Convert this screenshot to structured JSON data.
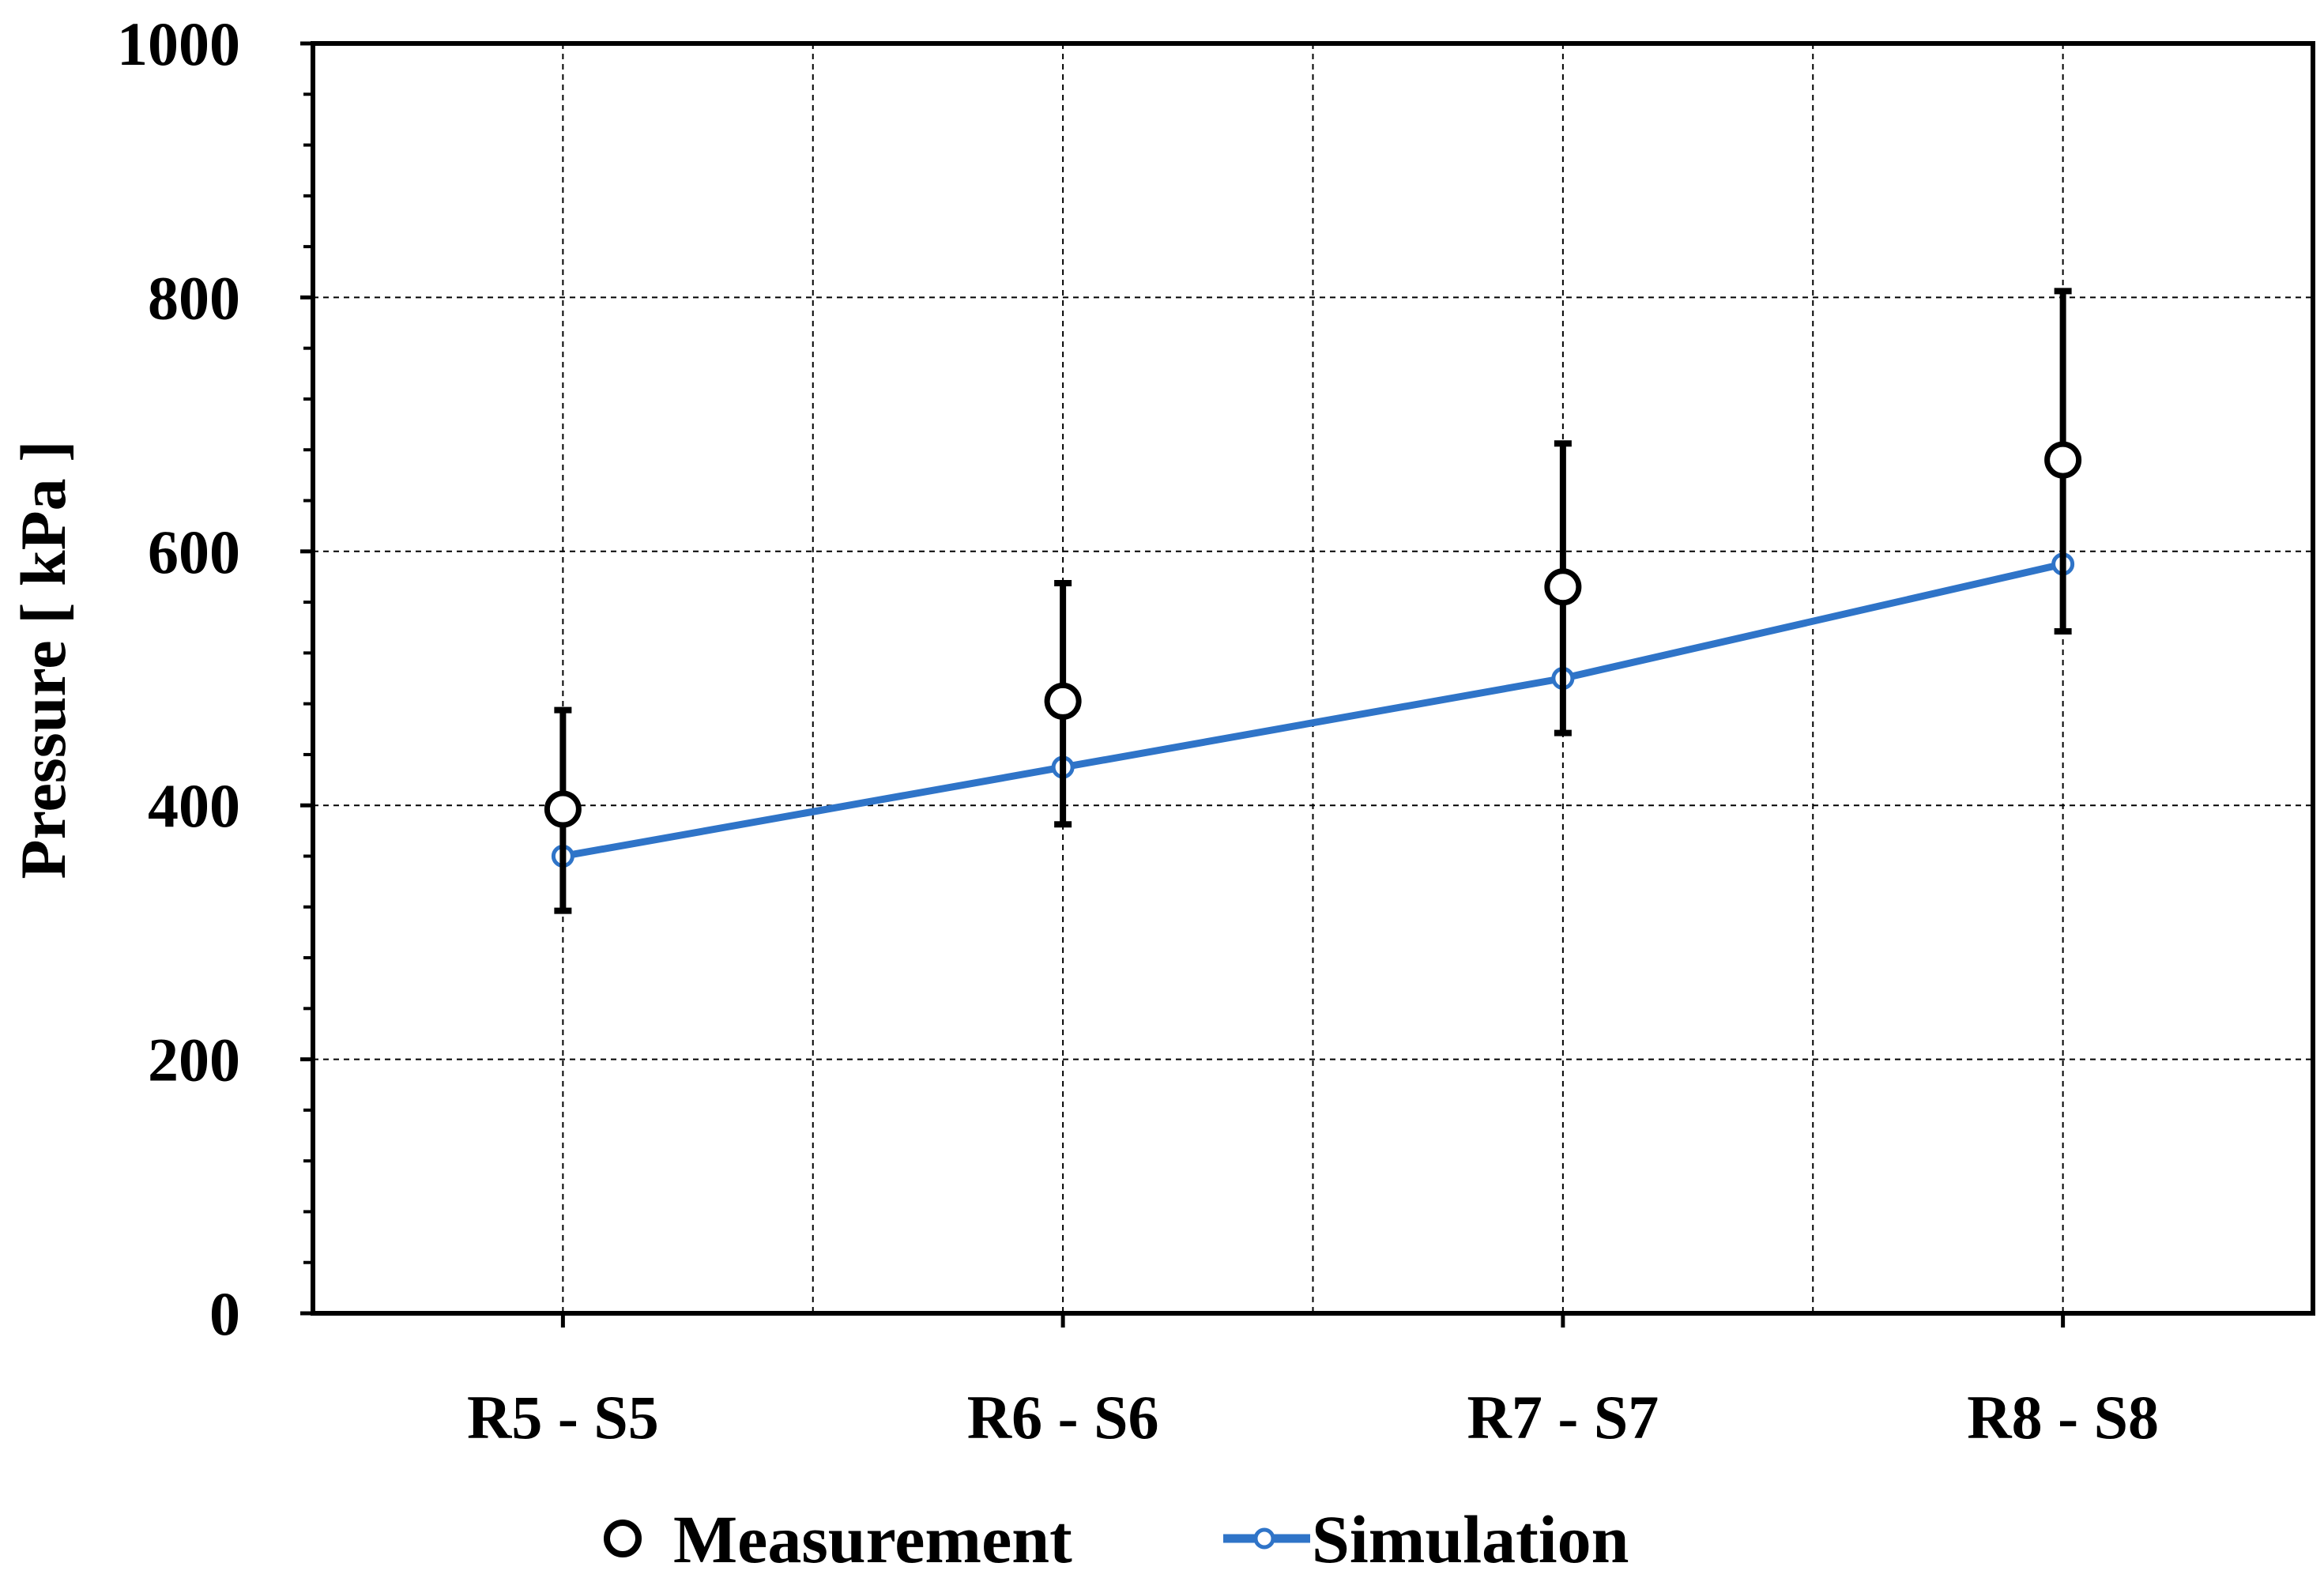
{
  "chart_data": {
    "type": "line",
    "title": "",
    "xlabel": "",
    "ylabel": "Pressure [ kPa ]",
    "ylim": [
      0,
      1000
    ],
    "yticks": [
      0,
      200,
      400,
      600,
      800,
      1000
    ],
    "ytick_labels": [
      "0",
      "200",
      "400",
      "600",
      "800",
      "1000"
    ],
    "y_minor_step": 40,
    "grid": true,
    "categories": [
      "R5 - S5",
      "R6 - S6",
      "R7 - S7",
      "R8 - S8"
    ],
    "series": [
      {
        "name": "Measurement",
        "style": "markers",
        "values": [
          397,
          482,
          572,
          672
        ],
        "error_low": [
          317,
          385,
          457,
          537
        ],
        "error_high": [
          475,
          575,
          685,
          805
        ],
        "color": "#000000"
      },
      {
        "name": "Simulation",
        "style": "line-markers",
        "values": [
          360,
          430,
          500,
          590
        ],
        "color": "#2f74c8"
      }
    ],
    "legend": {
      "placement": "bottom-center",
      "items": [
        "Measurement",
        "Simulation"
      ]
    }
  }
}
